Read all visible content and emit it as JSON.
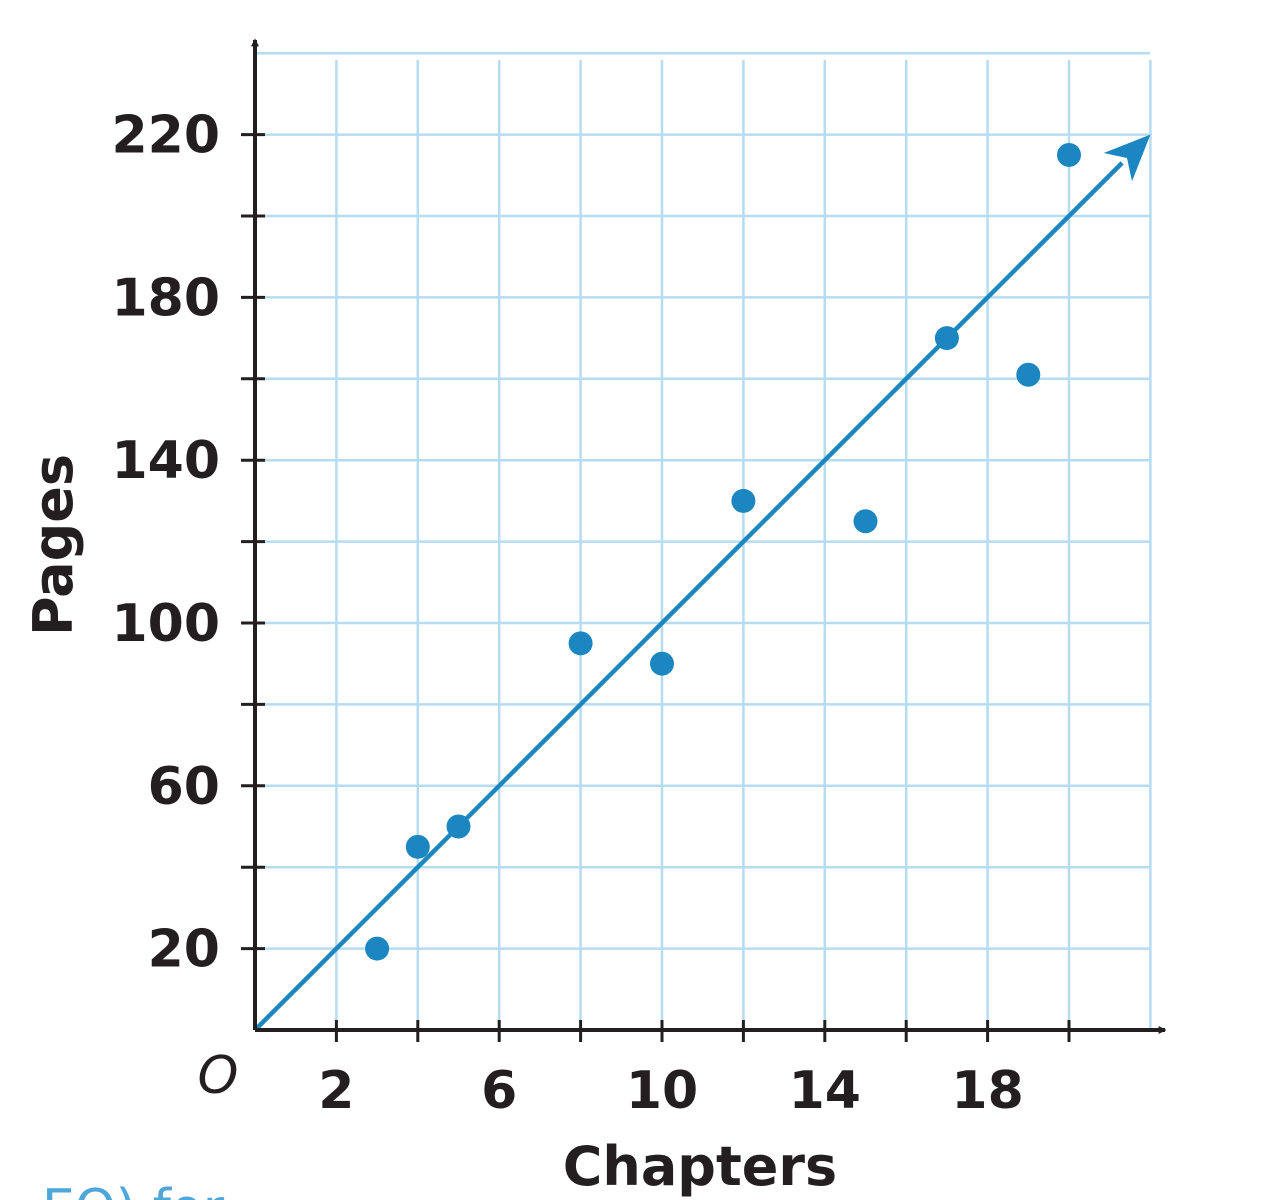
{
  "chart_data": {
    "type": "scatter",
    "xlabel": "Chapters",
    "ylabel": "Pages",
    "origin_label": "O",
    "xlim": [
      0,
      22
    ],
    "ylim": [
      0,
      240
    ],
    "x_ticks": [
      2,
      6,
      10,
      14,
      18
    ],
    "y_ticks": [
      20,
      60,
      100,
      140,
      180,
      220
    ],
    "grid": true,
    "colors": {
      "points": "#1b86c0",
      "grid": "#b6dcf2",
      "axis": "#231f20"
    },
    "points": [
      {
        "x": 3,
        "y": 20
      },
      {
        "x": 4,
        "y": 45
      },
      {
        "x": 5,
        "y": 50
      },
      {
        "x": 8,
        "y": 95
      },
      {
        "x": 10,
        "y": 90
      },
      {
        "x": 12,
        "y": 130
      },
      {
        "x": 15,
        "y": 125
      },
      {
        "x": 17,
        "y": 170
      },
      {
        "x": 19,
        "y": 161
      },
      {
        "x": 20,
        "y": 215
      }
    ],
    "trend_line": {
      "type": "ray",
      "from": {
        "x": 0,
        "y": 0
      },
      "to": {
        "x": 22,
        "y": 220
      }
    }
  },
  "footer": {
    "cutoff_text": "EQ) for"
  }
}
